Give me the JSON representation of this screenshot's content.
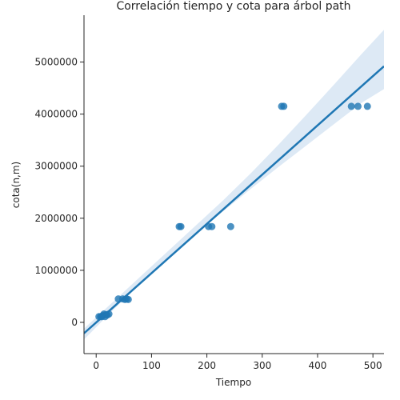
{
  "chart_data": {
    "type": "scatter",
    "title": "Correlación tiempo y cota para árbol path",
    "xlabel": "Tiempo",
    "ylabel": "cota(n,m)",
    "xlim": [
      -22,
      520
    ],
    "ylim": [
      -600000,
      5900000
    ],
    "xticks": [
      "0",
      "100",
      "200",
      "300",
      "400",
      "500"
    ],
    "xtick_values": [
      0,
      100,
      200,
      300,
      400,
      500
    ],
    "yticks": [
      "0",
      "1000000",
      "2000000",
      "3000000",
      "4000000",
      "5000000"
    ],
    "ytick_values": [
      0,
      1000000,
      2000000,
      3000000,
      4000000,
      5000000
    ],
    "grid": false,
    "point_color": "#1f77b4",
    "band_color": "#c6dbef",
    "points": [
      {
        "x": 5,
        "y": 110000
      },
      {
        "x": 8,
        "y": 110000
      },
      {
        "x": 10,
        "y": 110000
      },
      {
        "x": 12,
        "y": 130000
      },
      {
        "x": 14,
        "y": 160000
      },
      {
        "x": 16,
        "y": 110000
      },
      {
        "x": 18,
        "y": 150000
      },
      {
        "x": 20,
        "y": 140000
      },
      {
        "x": 23,
        "y": 160000
      },
      {
        "x": 40,
        "y": 450000
      },
      {
        "x": 48,
        "y": 450000
      },
      {
        "x": 52,
        "y": 440000
      },
      {
        "x": 55,
        "y": 450000
      },
      {
        "x": 58,
        "y": 440000
      },
      {
        "x": 150,
        "y": 1840000
      },
      {
        "x": 153,
        "y": 1840000
      },
      {
        "x": 203,
        "y": 1840000
      },
      {
        "x": 209,
        "y": 1840000
      },
      {
        "x": 243,
        "y": 1840000
      },
      {
        "x": 335,
        "y": 4150000
      },
      {
        "x": 339,
        "y": 4150000
      },
      {
        "x": 461,
        "y": 4150000
      },
      {
        "x": 473,
        "y": 4150000
      },
      {
        "x": 490,
        "y": 4150000
      }
    ],
    "regression": {
      "x": [
        -22,
        520
      ],
      "y": [
        -210000,
        4920000
      ]
    },
    "ci_band": {
      "x": [
        -22,
        30,
        80,
        130,
        180,
        230,
        280,
        330,
        380,
        430,
        480,
        520
      ],
      "upper": [
        -120000,
        390000,
        880000,
        1370000,
        1860000,
        2350000,
        2870000,
        3420000,
        3990000,
        4570000,
        5160000,
        5620000
      ],
      "lower": [
        -330000,
        230000,
        750000,
        1240000,
        1700000,
        2140000,
        2570000,
        2990000,
        3400000,
        3810000,
        4220000,
        4480000
      ]
    }
  }
}
